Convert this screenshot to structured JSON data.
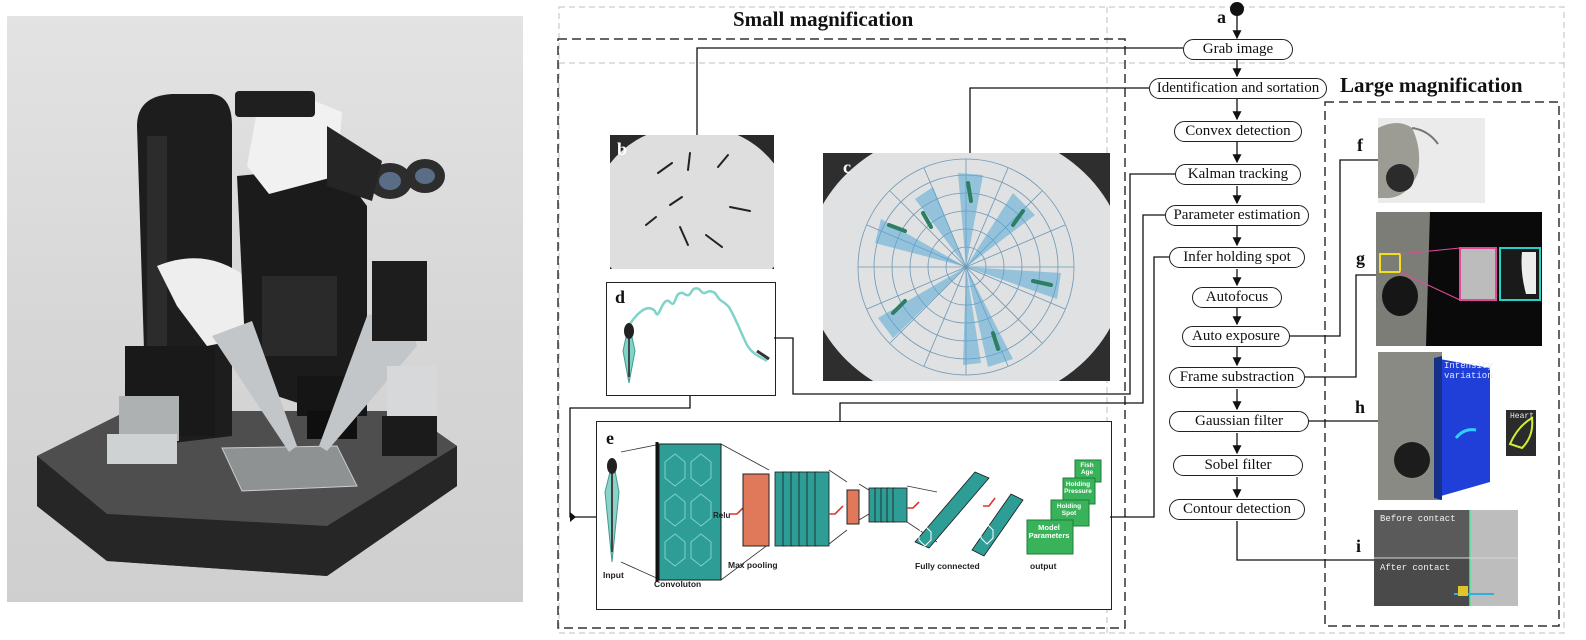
{
  "titles": {
    "small": "Small magnification",
    "large": "Large magnification"
  },
  "panel_letters": {
    "a": "a",
    "b": "b",
    "c": "c",
    "d": "d",
    "e": "e",
    "f": "f",
    "g": "g",
    "h": "h",
    "i": "i"
  },
  "flow_steps": [
    "Grab image",
    "Identification and sortation",
    "Convex detection",
    "Kalman tracking",
    "Parameter estimation",
    "Infer holding spot",
    "Autofocus",
    "Auto exposure",
    "Frame substraction",
    "Gaussian filter",
    "Sobel filter",
    "Contour detection"
  ],
  "cnn": {
    "input": "Input",
    "convolution": "Convoluton",
    "relu": "Relu",
    "max_pooling": "Max pooling",
    "fully_connected": "Fully connected",
    "output": "output",
    "outputs": [
      "Fish Age",
      "Holding Pressure",
      "Holding Spot",
      "Model Parameters"
    ]
  },
  "panel_h": {
    "intensity": "Intensity variation",
    "heart": "Heart"
  },
  "panel_i": {
    "before": "Before contact",
    "after": "After contact"
  },
  "colors": {
    "teal": "#2e9d96",
    "salmon": "#e0785a",
    "green_box": "#39b35a",
    "blue_panel": "#1f3fd8"
  }
}
